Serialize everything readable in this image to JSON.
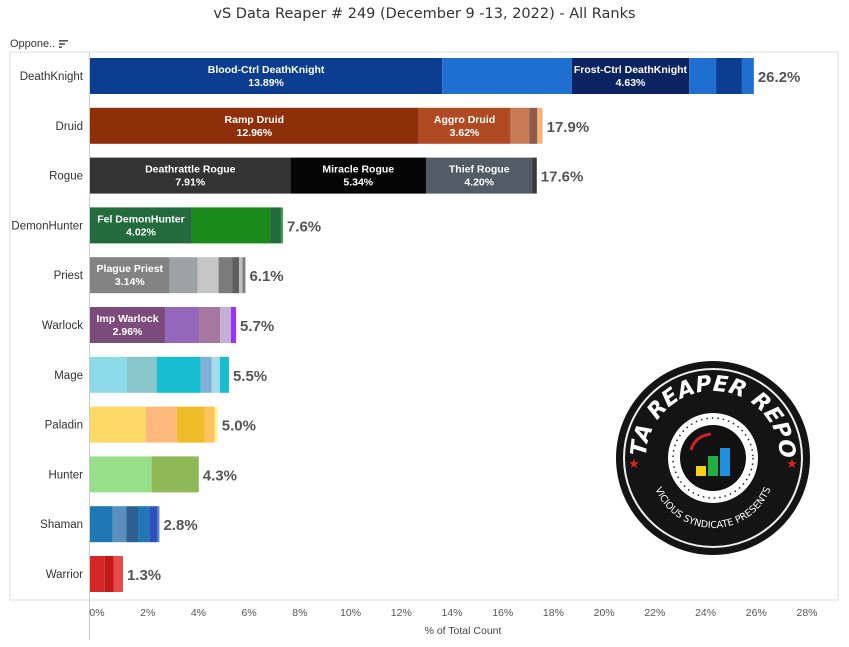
{
  "chart_data": {
    "type": "bar",
    "orientation": "horizontal",
    "stacked": true,
    "title": "vS Data Reaper # 249 (December 9 -13, 2022) - All Ranks",
    "row_header": "Oppone..",
    "xlabel": "% of Total Count",
    "xlim": [
      0,
      28
    ],
    "xticks": [
      "0%",
      "2%",
      "4%",
      "6%",
      "8%",
      "10%",
      "12%",
      "14%",
      "16%",
      "18%",
      "20%",
      "22%",
      "24%",
      "26%",
      "28%"
    ],
    "grid": false,
    "categories": [
      "DeathKnight",
      "Druid",
      "Rogue",
      "DemonHunter",
      "Priest",
      "Warlock",
      "Mage",
      "Paladin",
      "Hunter",
      "Shaman",
      "Warrior"
    ],
    "totals": [
      "26.2%",
      "17.9%",
      "17.6%",
      "7.6%",
      "6.1%",
      "5.7%",
      "5.5%",
      "5.0%",
      "4.3%",
      "2.8%",
      "1.3%"
    ],
    "rows": [
      {
        "segments": [
          {
            "label": "Blood-Ctrl DeathKnight",
            "value": 13.89,
            "pct": "13.89%",
            "color": "#0b3d91"
          },
          {
            "value": 5.11,
            "color": "#1e6fcf"
          },
          {
            "label": "Frost-Ctrl DeathKnight",
            "value": 4.63,
            "pct": "4.63%",
            "color": "#0b2361"
          },
          {
            "value": 1.06,
            "color": "#1e6fcf"
          },
          {
            "value": 1.02,
            "color": "#0b3d91"
          },
          {
            "value": 0.47,
            "color": "#1e6fcf"
          }
        ]
      },
      {
        "segments": [
          {
            "label": "Ramp Druid",
            "value": 12.96,
            "pct": "12.96%",
            "color": "#8f2f0a"
          },
          {
            "label": "Aggro Druid",
            "value": 3.62,
            "pct": "3.62%",
            "color": "#b04a22"
          },
          {
            "value": 0.74,
            "color": "#c97b55"
          },
          {
            "value": 0.32,
            "color": "#8e5a4a"
          },
          {
            "value": 0.21,
            "color": "#f7b27a"
          }
        ]
      },
      {
        "segments": [
          {
            "label": "Deathrattle Rogue",
            "value": 7.91,
            "pct": "7.91%",
            "color": "#333333"
          },
          {
            "label": "Miracle Rogue",
            "value": 5.34,
            "pct": "5.34%",
            "color": "#050505"
          },
          {
            "label": "Thief Rogue",
            "value": 4.2,
            "pct": "4.20%",
            "color": "#535b64"
          },
          {
            "value": 0.17,
            "color": "#3a3a3a"
          }
        ]
      },
      {
        "segments": [
          {
            "label": "Fel DemonHunter",
            "value": 4.02,
            "pct": "4.02%",
            "color": "#236b3c"
          },
          {
            "value": 3.08,
            "color": "#1a8a1a"
          },
          {
            "value": 0.43,
            "color": "#236b3c"
          },
          {
            "value": 0.08,
            "color": "#3aa04a"
          }
        ]
      },
      {
        "segments": [
          {
            "label": "Plague Priest",
            "value": 3.14,
            "pct": "3.14%",
            "color": "#838383"
          },
          {
            "value": 1.1,
            "color": "#9da3a5"
          },
          {
            "value": 0.83,
            "color": "#c6c6c6"
          },
          {
            "value": 0.55,
            "color": "#7c7c7c"
          },
          {
            "value": 0.26,
            "color": "#5e5e5e"
          },
          {
            "value": 0.13,
            "color": "#c0c0c0"
          },
          {
            "value": 0.12,
            "color": "#7f7f7f"
          }
        ]
      },
      {
        "segments": [
          {
            "label": "Imp Warlock",
            "value": 2.96,
            "pct": "2.96%",
            "color": "#7d4a7c"
          },
          {
            "value": 1.34,
            "color": "#9467bd"
          },
          {
            "value": 0.83,
            "color": "#a8779f"
          },
          {
            "value": 0.43,
            "color": "#c4b0d5"
          },
          {
            "value": 0.2,
            "color": "#9b30ff"
          }
        ]
      },
      {
        "segments": [
          {
            "value": 1.46,
            "color": "#8ddbea"
          },
          {
            "value": 1.17,
            "color": "#88c6cc"
          },
          {
            "value": 1.74,
            "color": "#17becf"
          },
          {
            "value": 0.43,
            "color": "#7fb0d8"
          },
          {
            "value": 0.32,
            "color": "#a8dcec"
          },
          {
            "value": 0.36,
            "color": "#17becf"
          }
        ]
      },
      {
        "segments": [
          {
            "value": 2.2,
            "color": "#ffd966"
          },
          {
            "value": 1.22,
            "color": "#ffb97a"
          },
          {
            "value": 1.11,
            "color": "#f0bd2a"
          },
          {
            "value": 0.39,
            "color": "#ffc35e"
          },
          {
            "value": 0.12,
            "color": "#fff59a"
          }
        ]
      },
      {
        "segments": [
          {
            "value": 2.43,
            "color": "#98df8a"
          },
          {
            "value": 1.86,
            "color": "#8fb956"
          }
        ]
      },
      {
        "segments": [
          {
            "value": 0.89,
            "color": "#1f77b4"
          },
          {
            "value": 0.55,
            "color": "#5a8fc0"
          },
          {
            "value": 0.47,
            "color": "#2d5f91"
          },
          {
            "value": 0.43,
            "color": "#1f77b4"
          },
          {
            "value": 0.32,
            "color": "#2f4fbf"
          },
          {
            "value": 0.08,
            "color": "#5a8fc0"
          }
        ]
      },
      {
        "segments": [
          {
            "value": 0.58,
            "color": "#d62728"
          },
          {
            "value": 0.36,
            "color": "#c11a1a"
          },
          {
            "value": 0.36,
            "color": "#e84a4a"
          }
        ]
      }
    ]
  },
  "logo": {
    "title": "DATA REAPER REPORT",
    "subtitle": "VICIOUS SYNDICATE PRESENTS"
  }
}
